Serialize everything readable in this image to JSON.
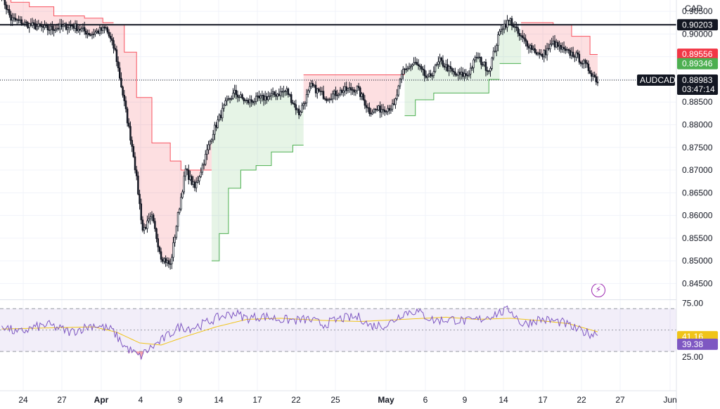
{
  "currency_label": "CAD",
  "symbol": "AUDCAD",
  "countdown": "03:47:14",
  "colors": {
    "up": "#089981",
    "down": "#f23645",
    "resistance": "#f7525f",
    "support": "#4caf50",
    "rsi": "#7e57c2",
    "rsi_ma": "#f0c419",
    "alert": "#9c27b0"
  },
  "chart_data": [
    {
      "type": "candlestick",
      "title": "",
      "ylim": [
        0.8415,
        0.9075
      ],
      "price_ticks": [
        "0.84500",
        "0.85000",
        "0.85500",
        "0.86000",
        "0.86500",
        "0.87000",
        "0.87500",
        "0.88000",
        "0.88500",
        "0.89000",
        "0.89500",
        "0.90000",
        "0.90500"
      ],
      "x_labels": [
        "24",
        "27",
        "Apr",
        "4",
        "9",
        "14",
        "17",
        "22",
        "25",
        "May",
        "6",
        "9",
        "14",
        "17",
        "22",
        "27",
        "Jun"
      ],
      "horizontal_line": "0.90203",
      "price_tags": [
        {
          "label": "0.90203",
          "role": "horizontal-line"
        },
        {
          "label": "0.89556",
          "role": "trail-resistance"
        },
        {
          "label": "0.89346",
          "role": "trail-support"
        },
        {
          "label": "0.88983",
          "role": "last-price"
        }
      ],
      "anchors": [
        [
          0,
          0.9085
        ],
        [
          6,
          0.9033
        ],
        [
          18,
          0.902
        ],
        [
          30,
          0.9011
        ],
        [
          46,
          0.9019
        ],
        [
          58,
          0.9
        ],
        [
          68,
          0.9012
        ],
        [
          74,
          0.8962
        ],
        [
          82,
          0.881
        ],
        [
          86,
          0.8735
        ],
        [
          92,
          0.8568
        ],
        [
          98,
          0.8595
        ],
        [
          104,
          0.851
        ],
        [
          110,
          0.849
        ],
        [
          115,
          0.86
        ],
        [
          120,
          0.87
        ],
        [
          126,
          0.866
        ],
        [
          132,
          0.872
        ],
        [
          138,
          0.8785
        ],
        [
          146,
          0.8845
        ],
        [
          152,
          0.887
        ],
        [
          160,
          0.885
        ],
        [
          172,
          0.886
        ],
        [
          186,
          0.8875
        ],
        [
          194,
          0.8825
        ],
        [
          202,
          0.8885
        ],
        [
          212,
          0.886
        ],
        [
          222,
          0.8875
        ],
        [
          232,
          0.888
        ],
        [
          240,
          0.883
        ],
        [
          248,
          0.8835
        ],
        [
          256,
          0.884
        ],
        [
          262,
          0.892
        ],
        [
          270,
          0.8935
        ],
        [
          278,
          0.89
        ],
        [
          286,
          0.894
        ],
        [
          296,
          0.891
        ],
        [
          304,
          0.891
        ],
        [
          310,
          0.895
        ],
        [
          318,
          0.892
        ],
        [
          326,
          0.9015
        ],
        [
          332,
          0.903
        ],
        [
          338,
          0.8995
        ],
        [
          346,
          0.897
        ],
        [
          352,
          0.895
        ],
        [
          360,
          0.898
        ],
        [
          368,
          0.896
        ],
        [
          374,
          0.8955
        ],
        [
          380,
          0.8935
        ],
        [
          386,
          0.891
        ],
        [
          389,
          0.8895
        ]
      ],
      "trail_segments": [
        {
          "side": "resistance",
          "start": 0,
          "end": 73,
          "levels": [
            [
              0,
              0.9085
            ],
            [
              6,
              0.907
            ],
            [
              18,
              0.906
            ],
            [
              34,
              0.904
            ],
            [
              54,
              0.9035
            ],
            [
              66,
              0.9025
            ]
          ]
        },
        {
          "side": "resistance",
          "start": 73,
          "end": 137,
          "levels": [
            [
              73,
              0.902
            ],
            [
              80,
              0.896
            ],
            [
              88,
              0.886
            ],
            [
              98,
              0.876
            ],
            [
              110,
              0.872
            ],
            [
              117,
              0.87
            ]
          ]
        },
        {
          "side": "support",
          "start": 137,
          "end": 197,
          "levels": [
            [
              137,
              0.85
            ],
            [
              142,
              0.856
            ],
            [
              148,
              0.866
            ],
            [
              156,
              0.87
            ],
            [
              166,
              0.871
            ],
            [
              176,
              0.874
            ],
            [
              190,
              0.8755
            ]
          ]
        },
        {
          "side": "resistance",
          "start": 197,
          "end": 263,
          "levels": [
            [
              197,
              0.891
            ]
          ]
        },
        {
          "side": "support",
          "start": 263,
          "end": 325,
          "levels": [
            [
              263,
              0.882
            ],
            [
              270,
              0.8855
            ],
            [
              282,
              0.887
            ],
            [
              318,
              0.89
            ]
          ]
        },
        {
          "side": "support",
          "start": 325,
          "end": 339,
          "levels": [
            [
              325,
              0.8935
            ]
          ]
        },
        {
          "side": "resistance",
          "start": 339,
          "end": 390,
          "levels": [
            [
              339,
              0.9025
            ],
            [
              360,
              0.902
            ],
            [
              372,
              0.8995
            ],
            [
              384,
              0.8955
            ]
          ]
        }
      ],
      "bars": 390
    },
    {
      "type": "line",
      "title": "",
      "indicator": "RSI",
      "ylim": [
        15,
        78
      ],
      "ticks": [
        "75.00",
        "25.00"
      ],
      "bands": [
        70,
        50,
        30
      ],
      "rsi_value": "39.38",
      "ma_value": "41.16",
      "rsi_anchors": [
        [
          0,
          55
        ],
        [
          10,
          47
        ],
        [
          20,
          52
        ],
        [
          30,
          55
        ],
        [
          45,
          48
        ],
        [
          60,
          55
        ],
        [
          72,
          50
        ],
        [
          80,
          35
        ],
        [
          90,
          25
        ],
        [
          96,
          32
        ],
        [
          104,
          40
        ],
        [
          116,
          53
        ],
        [
          124,
          52
        ],
        [
          132,
          56
        ],
        [
          142,
          62
        ],
        [
          152,
          66
        ],
        [
          160,
          61
        ],
        [
          170,
          63
        ],
        [
          182,
          60
        ],
        [
          192,
          59
        ],
        [
          200,
          60
        ],
        [
          210,
          55
        ],
        [
          222,
          61
        ],
        [
          234,
          62
        ],
        [
          240,
          54
        ],
        [
          252,
          55
        ],
        [
          262,
          66
        ],
        [
          270,
          68
        ],
        [
          282,
          59
        ],
        [
          294,
          60
        ],
        [
          304,
          58
        ],
        [
          312,
          60
        ],
        [
          322,
          65
        ],
        [
          332,
          69
        ],
        [
          340,
          55
        ],
        [
          350,
          60
        ],
        [
          358,
          59
        ],
        [
          366,
          57
        ],
        [
          376,
          50
        ],
        [
          386,
          46
        ],
        [
          390,
          50
        ]
      ],
      "ma_anchors": [
        [
          0,
          51
        ],
        [
          30,
          52
        ],
        [
          60,
          53
        ],
        [
          75,
          48
        ],
        [
          90,
          38
        ],
        [
          104,
          36
        ],
        [
          120,
          44
        ],
        [
          140,
          53
        ],
        [
          160,
          60
        ],
        [
          182,
          61
        ],
        [
          210,
          59
        ],
        [
          234,
          58
        ],
        [
          262,
          60
        ],
        [
          290,
          62
        ],
        [
          310,
          60
        ],
        [
          332,
          61
        ],
        [
          350,
          59
        ],
        [
          370,
          56
        ],
        [
          390,
          48
        ]
      ]
    }
  ]
}
